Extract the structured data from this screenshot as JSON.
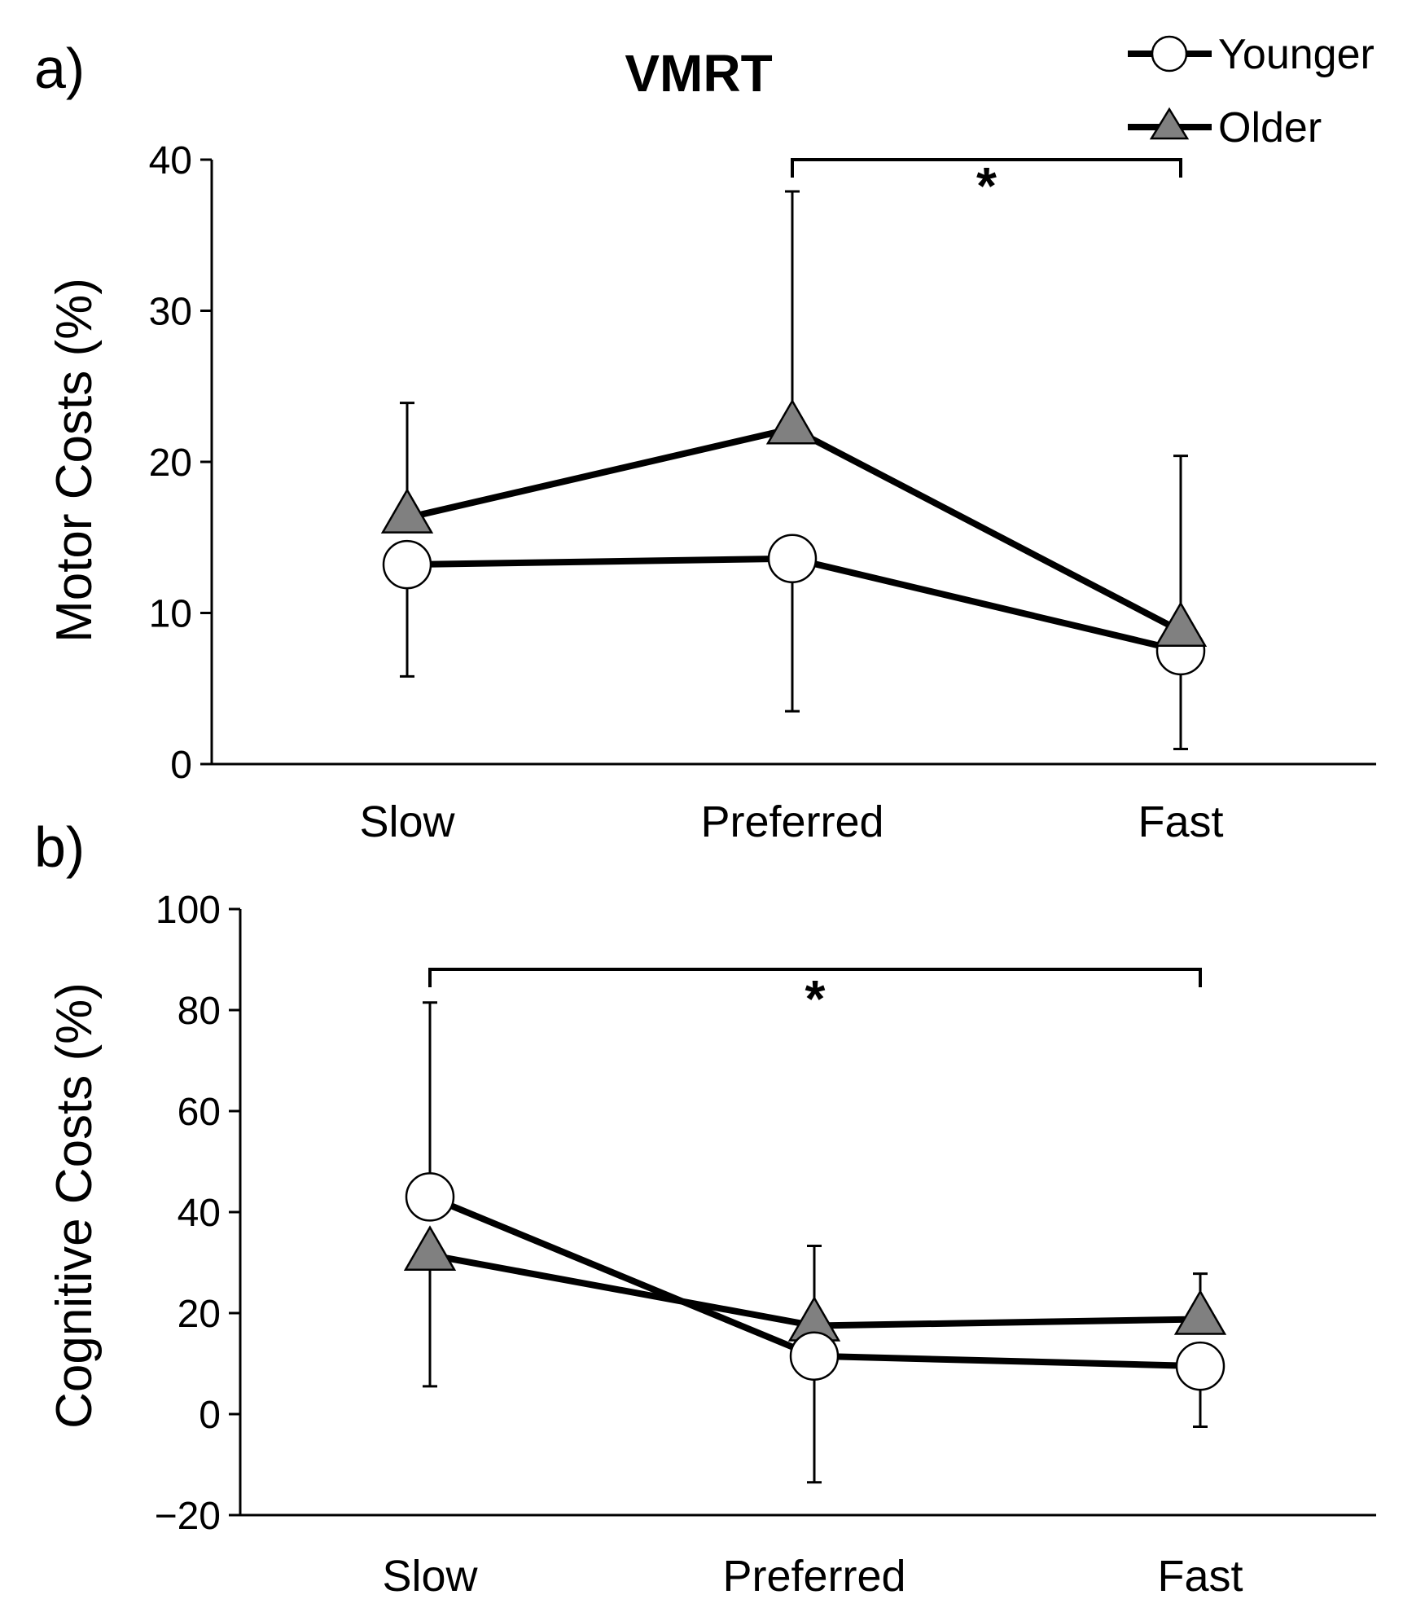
{
  "title": "VMRT",
  "legend": [
    {
      "name": "Younger",
      "marker": "circle"
    },
    {
      "name": "Older",
      "marker": "triangle"
    }
  ],
  "colors": {
    "line": "#000000",
    "older_fill": "#808080",
    "younger_fill": "#ffffff"
  },
  "chart_data": [
    {
      "panel": "a)",
      "type": "line",
      "title": "VMRT",
      "categories": [
        "Slow",
        "Preferred",
        "Fast"
      ],
      "ylabel": "Motor Costs (%)",
      "ylim": [
        0,
        40
      ],
      "yticks": [
        0,
        10,
        20,
        30,
        40
      ],
      "series": [
        {
          "name": "Younger",
          "marker": "circle",
          "values": [
            13.2,
            13.6,
            7.5
          ],
          "error_low": [
            5.8,
            3.5,
            1.0
          ],
          "error_high": [
            null,
            null,
            null
          ]
        },
        {
          "name": "Older",
          "marker": "triangle",
          "values": [
            16.3,
            22.2,
            8.8
          ],
          "error_low": [
            null,
            null,
            null
          ],
          "error_high": [
            23.9,
            37.9,
            20.4
          ]
        }
      ],
      "significance": {
        "from": "Preferred",
        "to": "Fast",
        "label": "*"
      }
    },
    {
      "panel": "b)",
      "type": "line",
      "categories": [
        "Slow",
        "Preferred",
        "Fast"
      ],
      "ylabel": "Cognitive Costs (%)",
      "ylim": [
        -20,
        100
      ],
      "yticks": [
        -20,
        0,
        20,
        40,
        60,
        80,
        100
      ],
      "ytick_labels": [
        "−20",
        "0",
        "20",
        "40",
        "60",
        "80",
        "100"
      ],
      "series": [
        {
          "name": "Younger",
          "marker": "circle",
          "values": [
            43,
            11.5,
            9.5
          ],
          "error_low": [
            null,
            -13.5,
            -2.5
          ],
          "error_high": [
            81.5,
            null,
            null
          ]
        },
        {
          "name": "Older",
          "marker": "triangle",
          "values": [
            31.5,
            17.5,
            18.8
          ],
          "error_low": [
            5.5,
            null,
            null
          ],
          "error_high": [
            null,
            33.3,
            27.8
          ]
        }
      ],
      "significance": {
        "from": "Slow",
        "to": "Fast",
        "label": "*"
      }
    }
  ]
}
